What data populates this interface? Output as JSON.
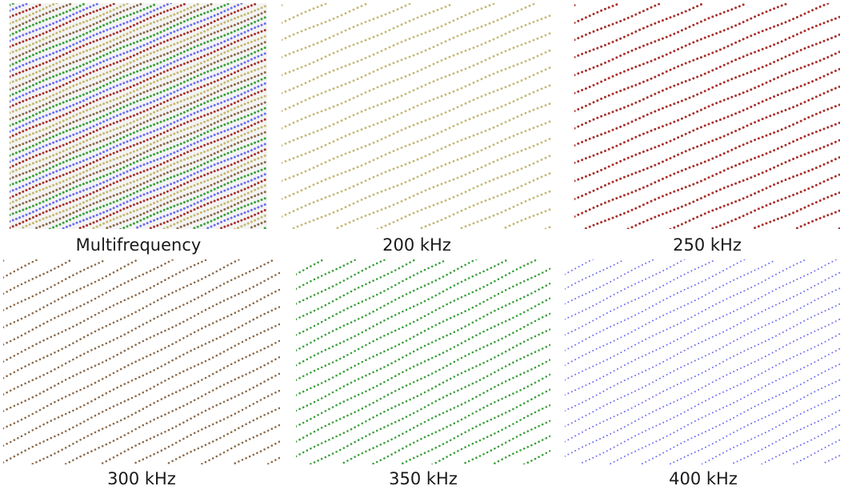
{
  "figure": {
    "panels": [
      {
        "id": "multifrequency",
        "label": "Multifrequency",
        "kind": "composite",
        "colors": [
          "#a8302b",
          "#c4b870",
          "#8b6a4a",
          "#3aa03a",
          "#6d6df2"
        ]
      },
      {
        "id": "f200",
        "label": "200 kHz",
        "kind": "single",
        "colors": [
          "#c4b870"
        ]
      },
      {
        "id": "f250",
        "label": "250 kHz",
        "kind": "single",
        "colors": [
          "#a8302b"
        ]
      },
      {
        "id": "f300",
        "label": "300 kHz",
        "kind": "single",
        "colors": [
          "#8b6a4a"
        ]
      },
      {
        "id": "f350",
        "label": "350 kHz",
        "kind": "single",
        "colors": [
          "#3aa03a"
        ]
      },
      {
        "id": "f400",
        "label": "400 kHz",
        "kind": "single",
        "colors": [
          "#6d6df2"
        ]
      }
    ]
  }
}
